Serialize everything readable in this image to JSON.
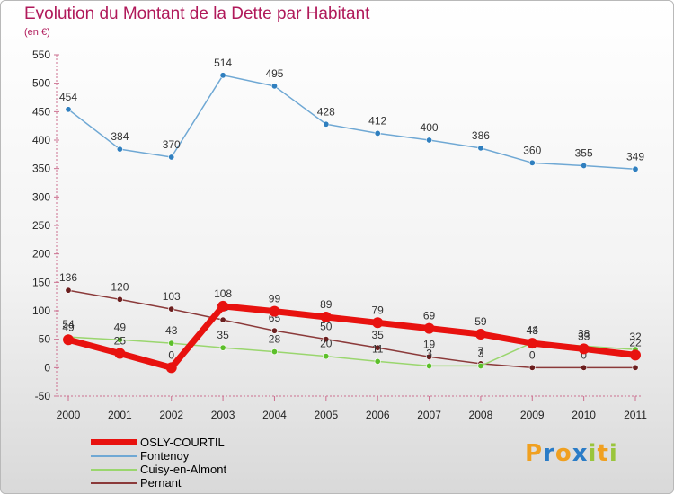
{
  "header": {
    "title": "Evolution du Montant de la Dette par Habitant",
    "subtitle": "(en €)"
  },
  "logo": {
    "letters": [
      "P",
      "r",
      "o",
      "x",
      "i",
      "t",
      "i"
    ],
    "colors": [
      "#f0a020",
      "#2a7cc7",
      "#f0a020",
      "#2a7cc7",
      "#9ac53c",
      "#f0a020",
      "#9ac53c"
    ]
  },
  "chart_data": {
    "type": "line",
    "title": "Evolution du Montant de la Dette par Habitant",
    "ylabel": "(en €)",
    "xlabel": "",
    "ylim": [
      -50,
      550
    ],
    "yticks": [
      -50,
      0,
      50,
      100,
      150,
      200,
      250,
      300,
      350,
      400,
      450,
      500,
      550
    ],
    "categories": [
      "2000",
      "2001",
      "2002",
      "2003",
      "2004",
      "2005",
      "2006",
      "2007",
      "2008",
      "2009",
      "2010",
      "2011"
    ],
    "grid": false,
    "legend_position": "bottom-left",
    "series": [
      {
        "name": "Fontenoy",
        "color": "#6fa8d4",
        "marker_color": "#2f7fbf",
        "values": [
          454,
          384,
          370,
          514,
          495,
          428,
          412,
          400,
          386,
          360,
          355,
          349
        ],
        "labels": [
          "454",
          "384",
          "370",
          "514",
          "495",
          "428",
          "412",
          "400",
          "386",
          "360",
          "355",
          "349"
        ]
      },
      {
        "name": "Pernant",
        "color": "#8b3a3a",
        "marker_color": "#6b1f1f",
        "values": [
          136,
          120,
          103,
          84,
          65,
          50,
          35,
          19,
          7,
          0,
          0,
          0
        ],
        "labels": [
          "136",
          "120",
          "103",
          "84",
          "65",
          "50",
          "35",
          "19",
          "7",
          "0",
          "0",
          "0"
        ]
      },
      {
        "name": "Cuisy-en-Almont",
        "color": "#9ad66e",
        "marker_color": "#5cbf2a",
        "values": [
          54,
          49,
          43,
          35,
          28,
          20,
          11,
          3,
          3,
          44,
          38,
          32
        ],
        "labels": [
          "54",
          "49",
          "43",
          "35",
          "28",
          "20",
          "11",
          "3",
          "3",
          "44",
          "38",
          "32"
        ]
      },
      {
        "name": "OSLY-COURTIL",
        "color": "#e8120f",
        "marker_color": "#e8120f",
        "values": [
          49,
          25,
          0,
          108,
          99,
          89,
          79,
          69,
          59,
          43,
          33,
          22
        ],
        "labels": [
          "49",
          "25",
          "0",
          "108",
          "99",
          "89",
          "79",
          "69",
          "59",
          "43",
          "33",
          "22"
        ]
      }
    ],
    "legend": [
      {
        "name": "OSLY-COURTIL",
        "color": "#e8120f"
      },
      {
        "name": "Fontenoy",
        "color": "#6fa8d4"
      },
      {
        "name": "Cuisy-en-Almont",
        "color": "#9ad66e"
      },
      {
        "name": "Pernant",
        "color": "#8b3a3a"
      }
    ]
  }
}
